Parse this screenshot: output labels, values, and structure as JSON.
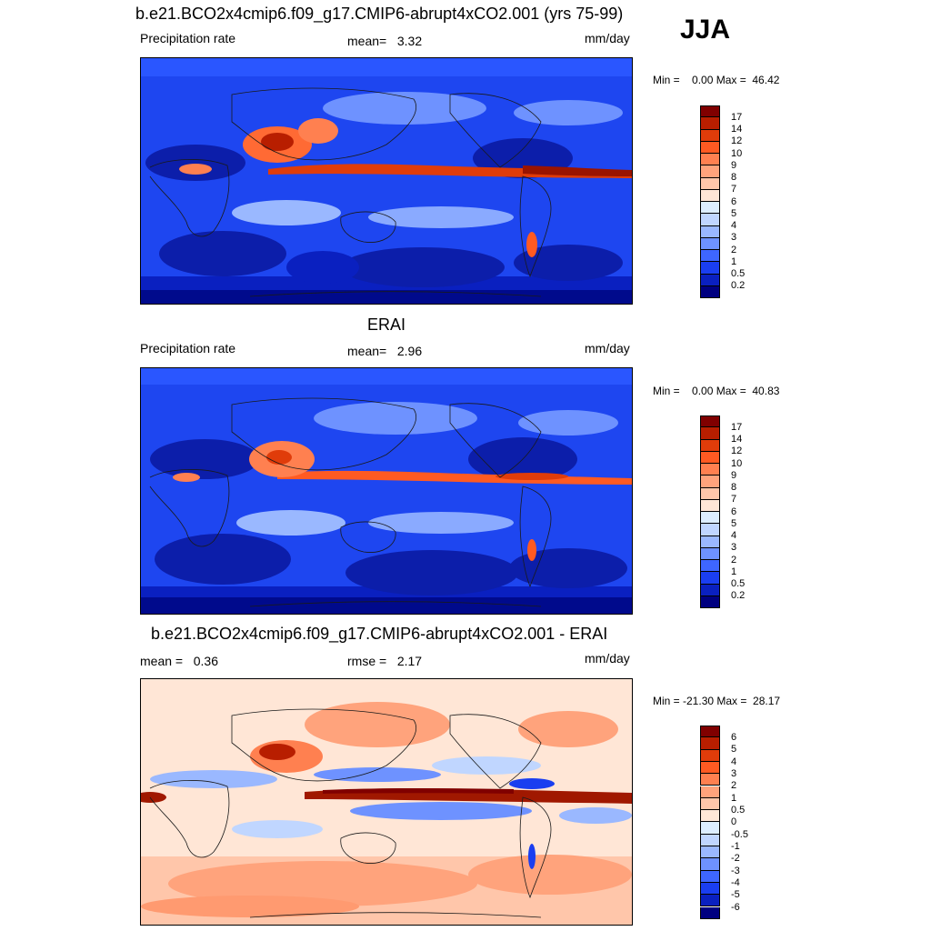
{
  "season": "JJA",
  "panels": [
    {
      "title": "b.e21.BCO2x4cmip6.f09_g17.CMIP6-abrupt4xCO2.001 (yrs 75-99)",
      "left_label": "Precipitation rate",
      "center_label": "mean=   3.32",
      "units": "mm/day",
      "minmax": "Min =    0.00 Max =  46.42"
    },
    {
      "title": "ERAI",
      "left_label": "Precipitation rate",
      "center_label": "mean=   2.96",
      "units": "mm/day",
      "minmax": "Min =    0.00 Max =  40.83"
    },
    {
      "title": "b.e21.BCO2x4cmip6.f09_g17.CMIP6-abrupt4xCO2.001 - ERAI",
      "left_label": "mean =   0.36",
      "center_label": "rmse =   2.17",
      "units": "mm/day",
      "minmax": "Min = -21.30 Max =  28.17"
    }
  ],
  "colorbars": {
    "precip": {
      "labels": [
        "17",
        "14",
        "12",
        "10",
        "9",
        "8",
        "7",
        "6",
        "5",
        "4",
        "3",
        "2",
        "1",
        "0.5",
        "0.2"
      ],
      "colors": [
        "#800000",
        "#b81e00",
        "#e03c0a",
        "#ff5a22",
        "#ff8050",
        "#ffa37c",
        "#ffc6aa",
        "#ffe6d6",
        "#ddeeff",
        "#c0d6ff",
        "#9ab8ff",
        "#6e92ff",
        "#3e66ff",
        "#1a3ef0",
        "#0a20c0",
        "#000080"
      ]
    },
    "diff": {
      "labels": [
        "6",
        "5",
        "4",
        "3",
        "2",
        "1",
        "0.5",
        "0",
        "-0.5",
        "-1",
        "-2",
        "-3",
        "-4",
        "-5",
        "-6"
      ],
      "colors": [
        "#800000",
        "#b81e00",
        "#e03c0a",
        "#ff5a22",
        "#ff8050",
        "#ffa37c",
        "#ffc6aa",
        "#ffe8d8",
        "#ddeeff",
        "#c0d6ff",
        "#9ab8ff",
        "#6e92ff",
        "#3e66ff",
        "#1a3ef0",
        "#0a20c0",
        "#000080"
      ]
    }
  },
  "map_colors": {
    "ocean_base": "#1e46f0",
    "polar": "#000a8c",
    "subtropic_dry": "#0c1eaa",
    "itcz_red": "#e03c0a",
    "itcz_dark": "#9a1400",
    "monsoon": "#ff6a34",
    "light_blue": "#8aaaff",
    "diff_base": "#ffe6d6",
    "diff_red": "#ff9a70",
    "diff_blue": "#6e92ff",
    "diff_dark_red": "#a01800",
    "coast": "#1a1a1a"
  }
}
